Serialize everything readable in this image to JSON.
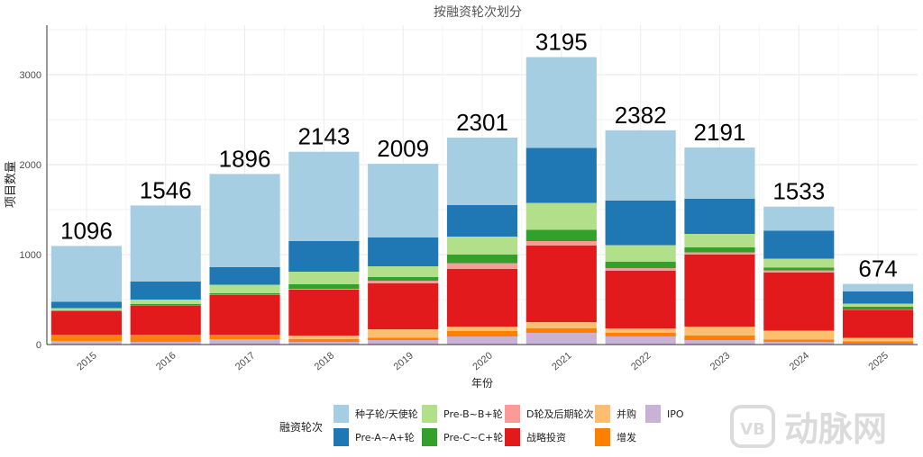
{
  "chart_data": {
    "type": "bar",
    "stacked": true,
    "title": "按融资轮次划分",
    "xlabel": "年份",
    "ylabel": "项目数量",
    "ylim": [
      0,
      3550
    ],
    "yticks": [
      0,
      1000,
      2000,
      3000
    ],
    "grid": true,
    "legend_title": "融资轮次",
    "legend_position": "bottom",
    "categories": [
      "2015",
      "2016",
      "2017",
      "2018",
      "2019",
      "2020",
      "2021",
      "2022",
      "2023",
      "2024",
      "2025"
    ],
    "totals": [
      1096,
      1546,
      1896,
      2143,
      2009,
      2301,
      3195,
      2382,
      2191,
      1533,
      674
    ],
    "series": [
      {
        "name": "IPO",
        "color": "#cab2d6",
        "values": [
          40,
          30,
          60,
          30,
          50,
          90,
          130,
          90,
          50,
          30,
          10
        ]
      },
      {
        "name": "增发",
        "color": "#ff7f00",
        "values": [
          60,
          70,
          40,
          30,
          25,
          60,
          50,
          40,
          50,
          25,
          25
        ]
      },
      {
        "name": "并购",
        "color": "#fdbf6f",
        "values": [
          5,
          5,
          5,
          40,
          95,
          50,
          70,
          50,
          100,
          100,
          40
        ]
      },
      {
        "name": "战略投资",
        "color": "#e31a1c",
        "values": [
          265,
          330,
          445,
          510,
          510,
          640,
          850,
          640,
          800,
          645,
          310
        ]
      },
      {
        "name": "D轮及后期轮次",
        "color": "#fb9a99",
        "values": [
          5,
          5,
          5,
          10,
          30,
          65,
          50,
          30,
          25,
          25,
          5
        ]
      },
      {
        "name": "Pre-C~C+轮",
        "color": "#33a02c",
        "values": [
          5,
          10,
          15,
          50,
          40,
          95,
          125,
          70,
          55,
          30,
          30
        ]
      },
      {
        "name": "Pre-B~B+轮",
        "color": "#b2df8a",
        "values": [
          25,
          50,
          95,
          140,
          120,
          200,
          300,
          185,
          150,
          100,
          35
        ]
      },
      {
        "name": "Pre-A~A+轮",
        "color": "#1f78b4",
        "values": [
          70,
          200,
          195,
          340,
          320,
          350,
          610,
          495,
          390,
          310,
          135
        ]
      },
      {
        "name": "种子轮/天使轮",
        "color": "#a6cee3",
        "values": [
          621,
          846,
          1036,
          993,
          819,
          751,
          1010,
          782,
          571,
          268,
          84
        ]
      }
    ],
    "legend_order": [
      "种子轮/天使轮",
      "Pre-A~A+轮",
      "Pre-B~B+轮",
      "Pre-C~C+轮",
      "D轮及后期轮次",
      "战略投资",
      "并购",
      "增发",
      "IPO"
    ]
  },
  "watermark": "动脉网"
}
